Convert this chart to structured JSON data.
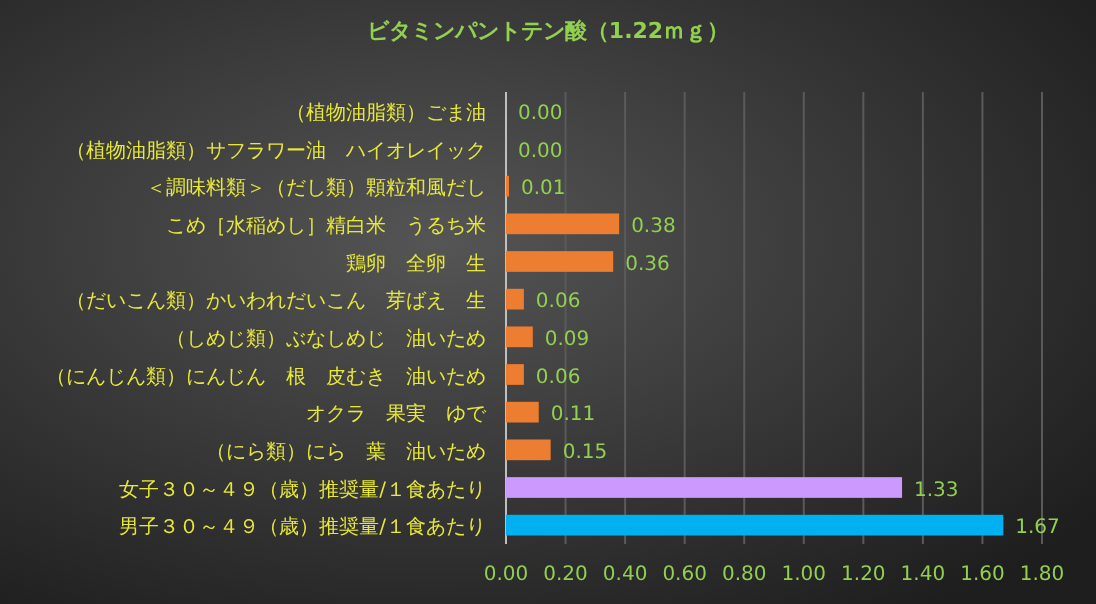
{
  "chart_data": {
    "type": "bar",
    "orientation": "horizontal",
    "title": "ビタミンパントテン酸（1.22ｍｇ）",
    "categories": [
      "（植物油脂類）ごま油",
      "（植物油脂類）サフラワー油　ハイオレイック",
      "＜調味料類＞（だし類）顆粒和風だし",
      "こめ［水稲めし］精白米　うるち米",
      "鶏卵　全卵　生",
      "（だいこん類）かいわれだいこん　芽ばえ　生",
      "（しめじ類）ぶなしめじ　油いため",
      "（にんじん類）にんじん　根　皮むき　油いため",
      "オクラ　果実　ゆで",
      "（にら類）にら　葉　油いため",
      "女子３０～４９（歳）推奨量/１食あたり",
      "男子３０～４９（歳）推奨量/１食あたり"
    ],
    "values": [
      0.0,
      0.0,
      0.01,
      0.38,
      0.36,
      0.06,
      0.09,
      0.06,
      0.11,
      0.15,
      1.33,
      1.67
    ],
    "colors": [
      "#ed7d31",
      "#ed7d31",
      "#ed7d31",
      "#ed7d31",
      "#ed7d31",
      "#ed7d31",
      "#ed7d31",
      "#ed7d31",
      "#ed7d31",
      "#ed7d31",
      "#cc99ff",
      "#00b0f0"
    ],
    "xlim": [
      0,
      1.8
    ],
    "xticks": [
      {
        "value": 0,
        "label": "0.00"
      },
      {
        "value": 0.2,
        "label": "0.20"
      },
      {
        "value": 0.4,
        "label": "0.40"
      },
      {
        "value": 0.6,
        "label": "0.60"
      },
      {
        "value": 0.8,
        "label": "0.80"
      },
      {
        "value": 1.0,
        "label": "1.00"
      },
      {
        "value": 1.2,
        "label": "1.20"
      },
      {
        "value": 1.4,
        "label": "1.40"
      },
      {
        "value": 1.6,
        "label": "1.60"
      },
      {
        "value": 1.8,
        "label": "1.80"
      }
    ],
    "value_labels": [
      "0.00",
      "0.00",
      "0.01",
      "0.38",
      "0.36",
      "0.06",
      "0.09",
      "0.06",
      "0.11",
      "0.15",
      "1.33",
      "1.67"
    ],
    "grid": "x"
  }
}
